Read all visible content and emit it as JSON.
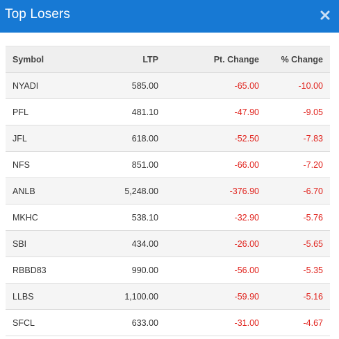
{
  "window": {
    "title": "Top Losers",
    "close_icon": "close-icon"
  },
  "colors": {
    "header_bg": "#1779d4",
    "negative": "#e0201a",
    "row_alt": "#f5f5f5"
  },
  "table": {
    "columns": [
      "Symbol",
      "LTP",
      "Pt. Change",
      "% Change"
    ],
    "rows": [
      {
        "symbol": "NYADI",
        "ltp": "585.00",
        "pt_change": "-65.00",
        "pct_change": "-10.00"
      },
      {
        "symbol": "PFL",
        "ltp": "481.10",
        "pt_change": "-47.90",
        "pct_change": "-9.05"
      },
      {
        "symbol": "JFL",
        "ltp": "618.00",
        "pt_change": "-52.50",
        "pct_change": "-7.83"
      },
      {
        "symbol": "NFS",
        "ltp": "851.00",
        "pt_change": "-66.00",
        "pct_change": "-7.20"
      },
      {
        "symbol": "ANLB",
        "ltp": "5,248.00",
        "pt_change": "-376.90",
        "pct_change": "-6.70"
      },
      {
        "symbol": "MKHC",
        "ltp": "538.10",
        "pt_change": "-32.90",
        "pct_change": "-5.76"
      },
      {
        "symbol": "SBI",
        "ltp": "434.00",
        "pt_change": "-26.00",
        "pct_change": "-5.65"
      },
      {
        "symbol": "RBBD83",
        "ltp": "990.00",
        "pt_change": "-56.00",
        "pct_change": "-5.35"
      },
      {
        "symbol": "LLBS",
        "ltp": "1,100.00",
        "pt_change": "-59.90",
        "pct_change": "-5.16"
      },
      {
        "symbol": "SFCL",
        "ltp": "633.00",
        "pt_change": "-31.00",
        "pct_change": "-4.67"
      }
    ]
  }
}
